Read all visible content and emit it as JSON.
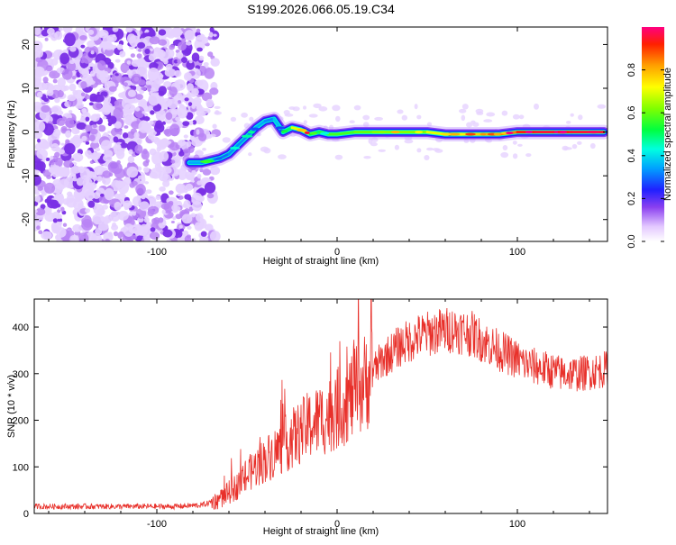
{
  "title": "S199.2026.066.05.19.C34",
  "colors": {
    "snr_line": "#e8302a",
    "noise": "#8a3ff0",
    "axis": "#000000"
  },
  "colorbar": {
    "label": "Normalized spectral amplitude",
    "ticks": [
      "0.0",
      "0.2",
      "0.4",
      "0.6",
      "0.8"
    ],
    "range": [
      0,
      1
    ]
  },
  "chart_data": [
    {
      "type": "heatmap",
      "title": "S199.2026.066.05.19.C34",
      "xlabel": "Height of straight line (km)",
      "ylabel": "Frequency (Hz)",
      "xlim": [
        -168,
        150
      ],
      "ylim": [
        -25,
        24
      ],
      "xticks": [
        "-100",
        "0",
        "100"
      ],
      "xtick_values": [
        -100,
        0,
        100
      ],
      "yticks": [
        "20",
        "10",
        "0",
        "-10",
        "-20"
      ],
      "ytick_values": [
        20,
        10,
        0,
        -10,
        -20
      ],
      "noise_region_x": [
        -168,
        -70
      ],
      "signal_track": {
        "x": [
          -82,
          -75,
          -70,
          -65,
          -60,
          -55,
          -50,
          -45,
          -40,
          -35,
          -30,
          -25,
          -20,
          -15,
          -10,
          -5,
          0,
          10,
          20,
          30,
          40,
          50,
          60,
          70,
          80,
          90,
          100,
          110,
          120,
          130,
          140,
          148
        ],
        "frequency": [
          -7,
          -7,
          -6.5,
          -6,
          -5,
          -3,
          -1,
          1,
          2.5,
          3,
          0,
          1,
          0.5,
          -0.5,
          0,
          -0.5,
          -0.5,
          0,
          0,
          0,
          0,
          0,
          -0.5,
          -0.5,
          -0.5,
          -0.5,
          0,
          0,
          0,
          0,
          0,
          0
        ],
        "amplitude": [
          0.35,
          0.35,
          0.3,
          0.3,
          0.3,
          0.35,
          0.3,
          0.35,
          0.35,
          0.3,
          0.45,
          0.55,
          0.85,
          0.55,
          0.5,
          0.6,
          0.55,
          0.6,
          0.6,
          0.65,
          0.6,
          0.65,
          0.75,
          0.75,
          0.8,
          0.8,
          0.9,
          0.95,
          0.95,
          0.95,
          0.95,
          0.95
        ]
      }
    },
    {
      "type": "line",
      "xlabel": "Height of straight line (km)",
      "ylabel": "SNR (10 * v/v)",
      "xlim": [
        -168,
        150
      ],
      "ylim": [
        0,
        460
      ],
      "xticks": [
        "-100",
        "0",
        "100"
      ],
      "xtick_values": [
        -100,
        0,
        100
      ],
      "yticks": [
        "0",
        "100",
        "200",
        "300",
        "400"
      ],
      "ytick_values": [
        0,
        100,
        200,
        300,
        400
      ],
      "series": [
        {
          "name": "SNR",
          "x": [
            -168,
            -150,
            -130,
            -110,
            -90,
            -75,
            -65,
            -55,
            -45,
            -35,
            -25,
            -15,
            -5,
            5,
            15,
            25,
            35,
            45,
            55,
            65,
            75,
            85,
            95,
            105,
            115,
            125,
            135,
            150
          ],
          "values": [
            15,
            15,
            15,
            15,
            15,
            18,
            30,
            60,
            100,
            130,
            160,
            190,
            210,
            240,
            280,
            330,
            360,
            380,
            390,
            395,
            385,
            360,
            340,
            320,
            310,
            300,
            300,
            310
          ]
        }
      ]
    }
  ]
}
